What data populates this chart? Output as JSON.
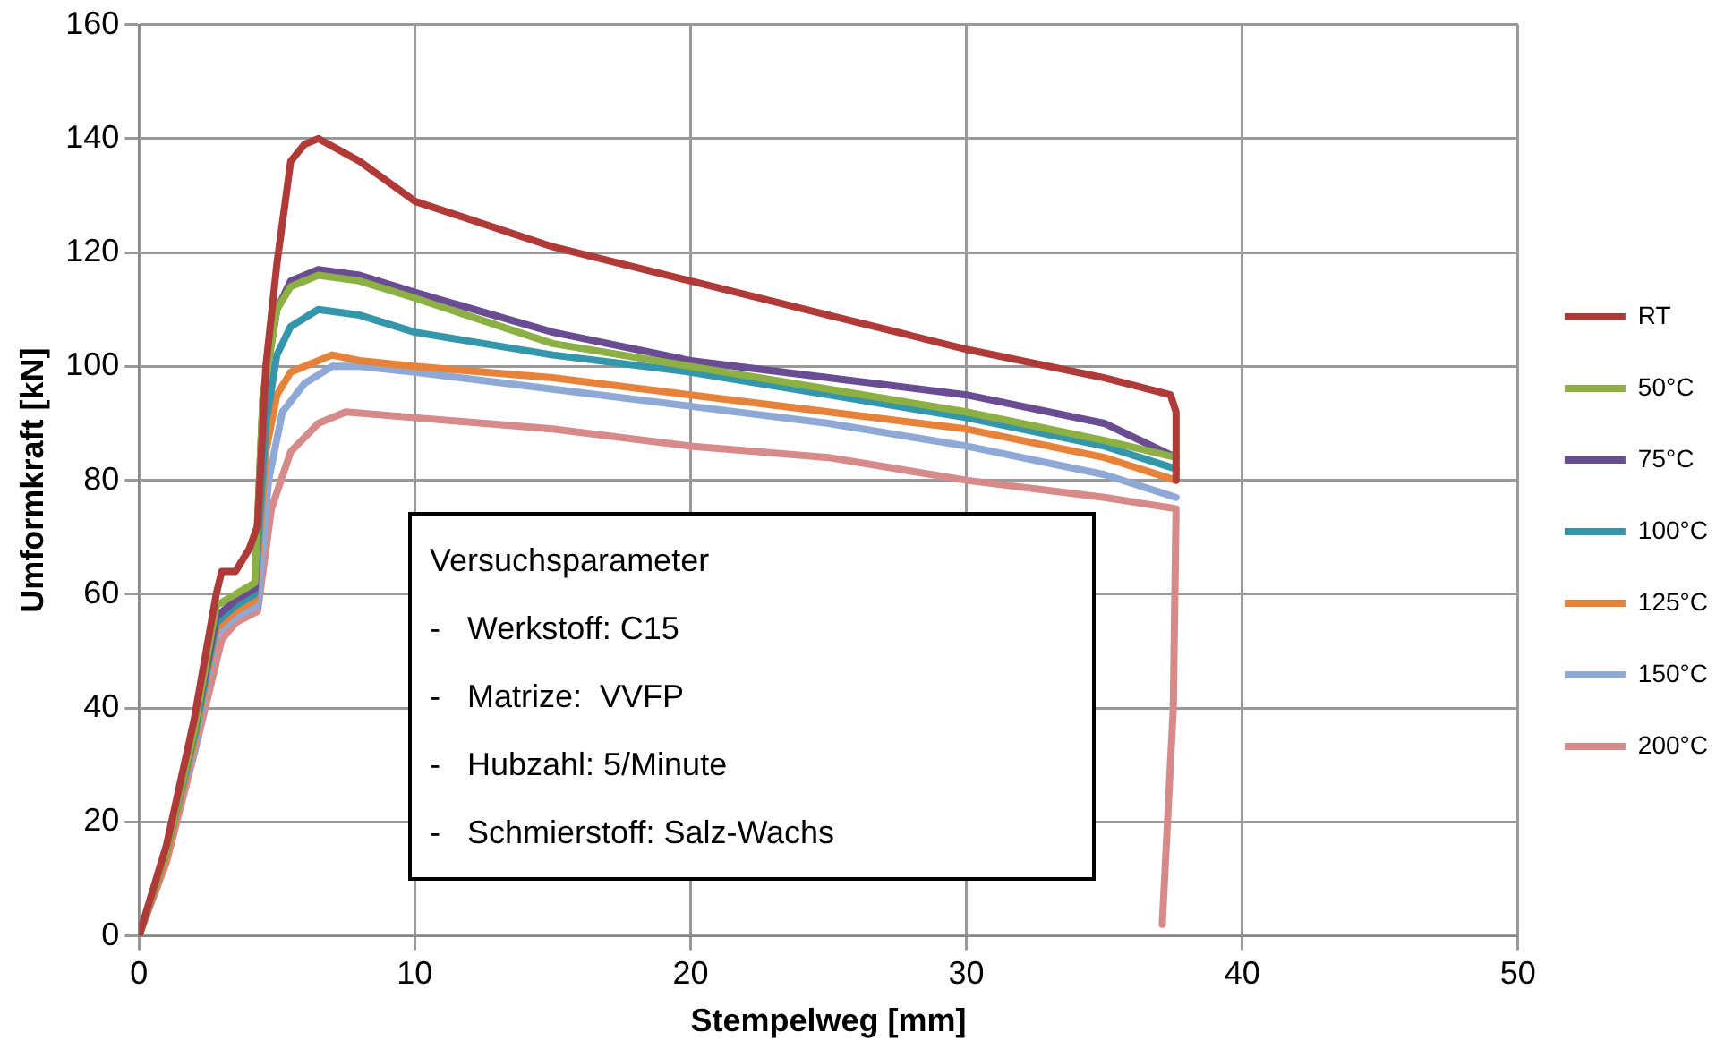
{
  "chart_data": {
    "type": "line",
    "xlabel": "Stempelweg [mm]",
    "ylabel": "Umformkraft [kN]",
    "xlim": [
      0,
      50
    ],
    "xticks": [
      0,
      10,
      20,
      30,
      40,
      50
    ],
    "ylim": [
      0,
      160
    ],
    "yticks": [
      0,
      20,
      40,
      60,
      80,
      100,
      120,
      140,
      160
    ],
    "grid": true,
    "legend": "right",
    "marker": "none",
    "line_style": "solid",
    "annotations": [
      "Versuchsparameter",
      "-   Werkstoff: C15",
      "-   Matrize:  VVFP",
      "-   Hubzahl: 5/Minute",
      "-   Schmierstoff: Salz-Wachs"
    ],
    "series": [
      {
        "name": "RT",
        "color": "#b03a37",
        "x": [
          0,
          1,
          2,
          2.8,
          3,
          3.5,
          4,
          4.3,
          4.6,
          5,
          5.5,
          6,
          6.5,
          8,
          10,
          15,
          20,
          25,
          30,
          35,
          37.4,
          37.6,
          37.6
        ],
        "values": [
          0,
          16,
          38,
          60,
          64,
          64,
          68,
          72,
          100,
          118,
          136,
          139,
          140,
          136,
          129,
          121,
          115,
          109,
          103,
          98,
          95,
          92,
          80
        ]
      },
      {
        "name": "50°C",
        "color": "#8cb043",
        "x": [
          0,
          1,
          2,
          2.8,
          3.5,
          4.2,
          4.5,
          5,
          5.5,
          6.5,
          8,
          10,
          15,
          20,
          25,
          30,
          35,
          37.6
        ],
        "values": [
          0,
          15,
          36,
          58,
          60,
          62,
          95,
          110,
          114,
          116,
          115,
          112,
          104,
          100,
          96,
          92,
          87,
          84
        ]
      },
      {
        "name": "75°C",
        "color": "#6a4c93",
        "x": [
          0,
          1,
          2,
          2.8,
          3.5,
          4.2,
          4.5,
          5,
          5.5,
          6.5,
          8,
          10,
          15,
          20,
          25,
          30,
          35,
          37.6
        ],
        "values": [
          0,
          15,
          36,
          56,
          59,
          61,
          95,
          110,
          115,
          117,
          116,
          113,
          106,
          101,
          98,
          95,
          90,
          84
        ]
      },
      {
        "name": "100°C",
        "color": "#3396aa",
        "x": [
          0,
          1,
          2,
          2.8,
          3.5,
          4.2,
          4.6,
          5,
          5.5,
          6.5,
          8,
          10,
          15,
          20,
          25,
          30,
          35,
          37.6
        ],
        "values": [
          0,
          15,
          35,
          55,
          58,
          60,
          90,
          102,
          107,
          110,
          109,
          106,
          102,
          99,
          95,
          91,
          86,
          82
        ]
      },
      {
        "name": "125°C",
        "color": "#e6823a",
        "x": [
          0,
          1,
          2,
          2.8,
          3.5,
          4.2,
          4.6,
          5,
          5.5,
          7,
          8,
          10,
          15,
          20,
          25,
          30,
          35,
          37.6
        ],
        "values": [
          0,
          14,
          34,
          54,
          57,
          59,
          85,
          95,
          99,
          102,
          101,
          100,
          98,
          95,
          92,
          89,
          84,
          80
        ]
      },
      {
        "name": "150°C",
        "color": "#8fa9d6",
        "x": [
          0,
          1,
          2,
          2.8,
          3.5,
          4.3,
          4.7,
          5.2,
          6,
          7,
          8,
          10,
          15,
          20,
          25,
          30,
          35,
          37.6
        ],
        "values": [
          0,
          14,
          33,
          53,
          56,
          58,
          80,
          92,
          97,
          100,
          100,
          99,
          96,
          93,
          90,
          86,
          81,
          77
        ]
      },
      {
        "name": "200°C",
        "color": "#d68a8a",
        "x": [
          0,
          1,
          2,
          3,
          3.5,
          4.3,
          4.8,
          5.5,
          6.5,
          7.5,
          10,
          15,
          20,
          25,
          30,
          35,
          37.6,
          37.5,
          37.1
        ],
        "values": [
          0,
          13,
          32,
          52,
          55,
          57,
          75,
          85,
          90,
          92,
          91,
          89,
          86,
          84,
          80,
          77,
          75,
          40,
          2
        ]
      }
    ]
  }
}
